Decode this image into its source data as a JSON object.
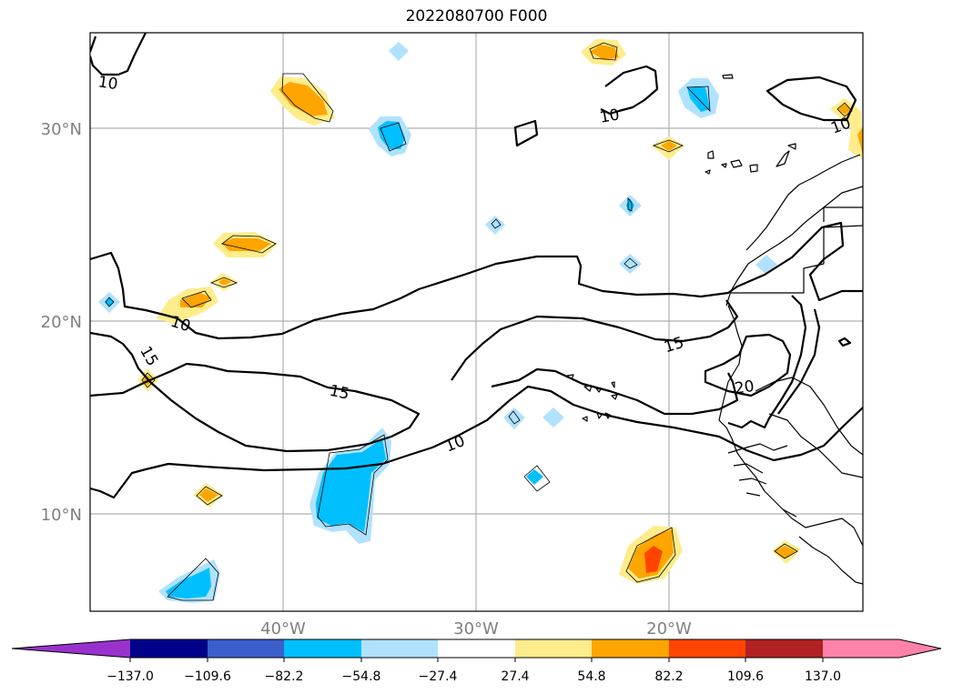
{
  "title": "2022080700 F000",
  "colors": {
    "neg_extend": "#9932cc",
    "neg_137": "#00008b",
    "neg_109": "#3a5fcd",
    "neg_82": "#00bfff",
    "neg_54": "#b0e2ff",
    "neutral": "#ffffff",
    "pos_27": "#ffec8b",
    "pos_54": "#ffa500",
    "pos_82": "#ff4500",
    "pos_109": "#b22222",
    "pos_extend": "#ff82ab"
  },
  "map": {
    "lat_labels": [
      "30°N",
      "20°N",
      "10°N"
    ],
    "lon_labels": [
      "40°W",
      "30°W",
      "20°W"
    ],
    "contour_labels": [
      "10",
      "10",
      "10",
      "10",
      "15",
      "15",
      "15",
      "10",
      "20"
    ]
  },
  "colorbar": {
    "ticks": [
      "−137.0",
      "−109.6",
      "−82.2",
      "−54.8",
      "−27.4",
      "27.4",
      "54.8",
      "82.2",
      "109.6",
      "137.0"
    ]
  }
}
